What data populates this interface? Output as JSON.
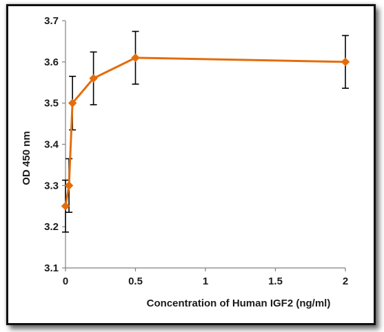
{
  "chart_data": {
    "type": "line",
    "title": "",
    "xlabel": "Concentration of Human IGF2 (ng/ml)",
    "ylabel": "OD 450 nm",
    "xlim": [
      0,
      2
    ],
    "ylim": [
      3.1,
      3.7
    ],
    "x_ticks": [
      "0",
      "0.5",
      "1",
      "1.5",
      "2"
    ],
    "y_ticks": [
      "3.1",
      "3.2",
      "3.3",
      "3.4",
      "3.5",
      "3.6",
      "3.7"
    ],
    "grid": false,
    "legend": "none",
    "series": [
      {
        "x": [
          0,
          0.025,
          0.05,
          0.2,
          0.5,
          2
        ],
        "y": [
          3.25,
          3.3,
          3.5,
          3.56,
          3.61,
          3.6
        ],
        "error": [
          0.063,
          0.065,
          0.065,
          0.064,
          0.064,
          0.064
        ],
        "color": "#E46C0A",
        "marker": "diamond"
      }
    ]
  },
  "colors": {
    "series": "#E46C0A",
    "axis": "#808080",
    "error_bar": "#000000",
    "frame": "#111111"
  }
}
